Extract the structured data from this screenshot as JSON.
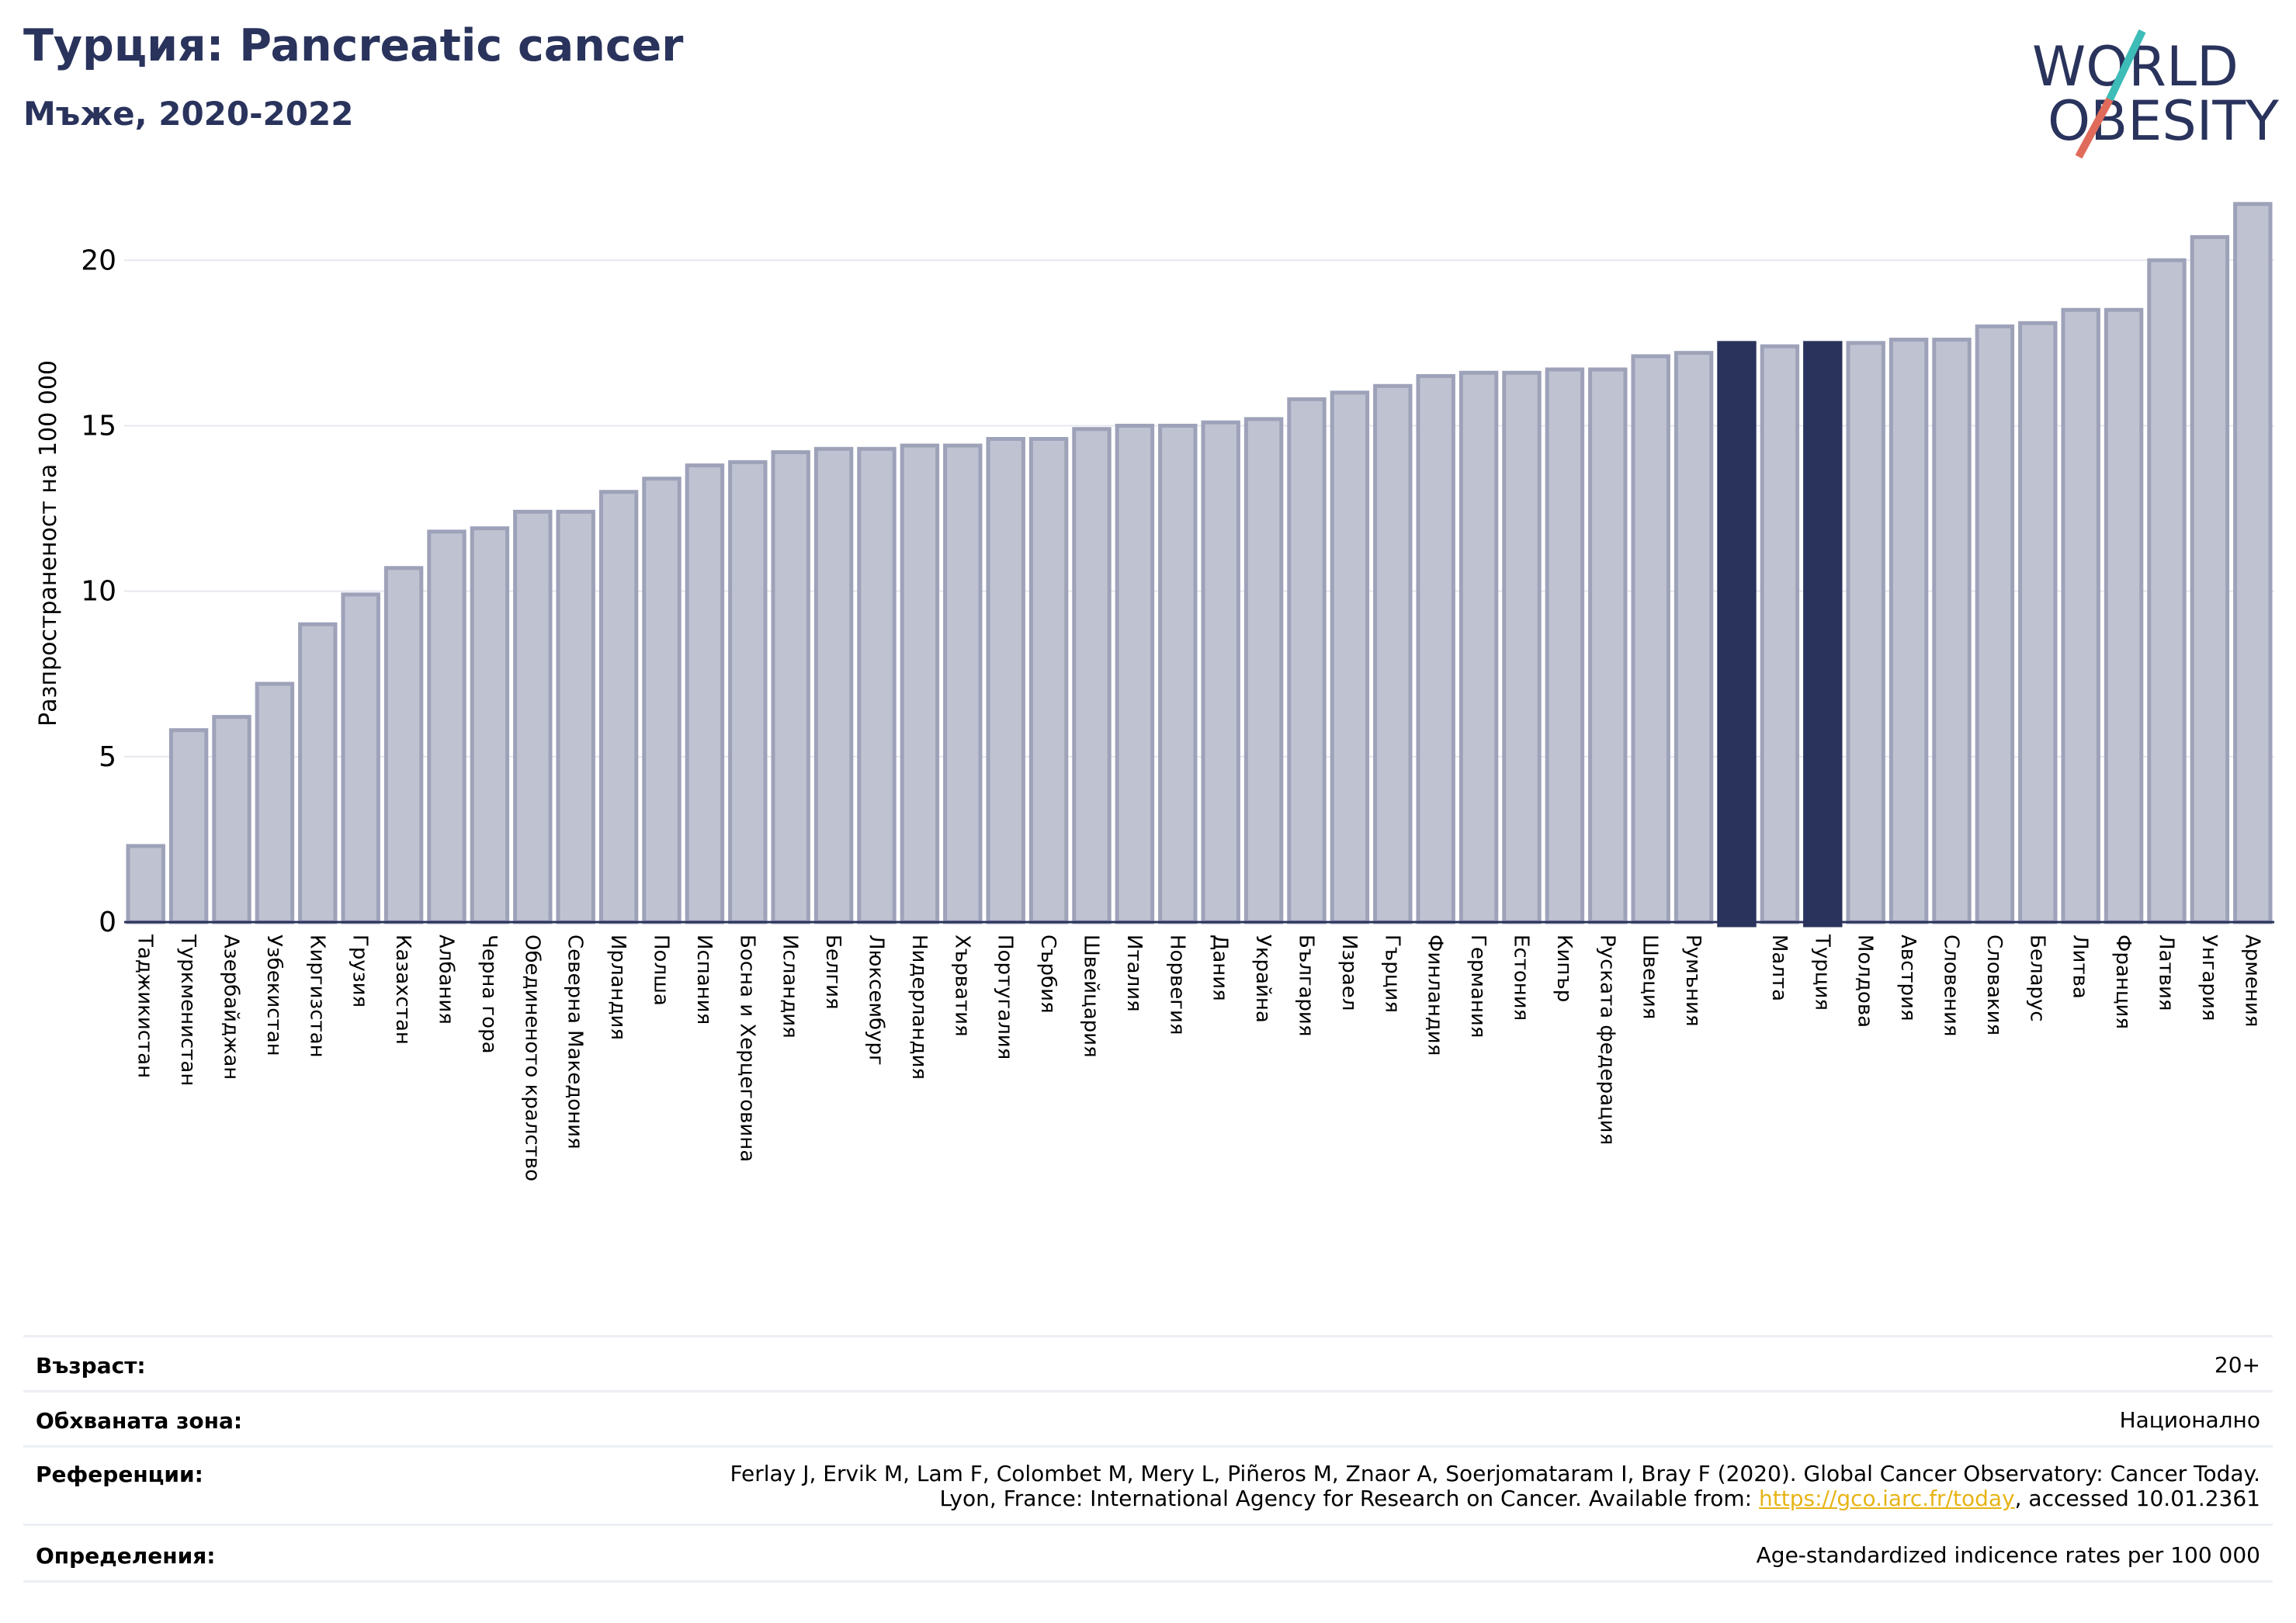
{
  "header": {
    "title": "Турция: Pancreatic cancer",
    "subtitle": "Мъже, 2020-2022",
    "logo_line1": "WORLD",
    "logo_line2": "OBESITY"
  },
  "colors": {
    "bar": "#bfc2d1",
    "bar_edge": "#9ea2b9",
    "highlight": "#29335c",
    "title": "#29335c",
    "logo_teal": "#3dbcb8",
    "logo_red": "#e06b5a"
  },
  "chart_data": {
    "type": "bar",
    "ylabel": "Разпространеност  на 100 000",
    "ylim": [
      0,
      22
    ],
    "yticks": [
      0,
      5,
      10,
      15,
      20
    ],
    "grid": true,
    "categories": [
      "Таджикистан",
      "Туркменистан",
      "Азербайджан",
      "Узбекистан",
      "Киргизстан",
      "Грузия",
      "Казахстан",
      "Албания",
      "Черна гора",
      "Обединеното кралство",
      "Северна Македония",
      "Ирландия",
      "Полша",
      "Испания",
      "Босна и Херцеговина",
      "Исландия",
      "Белгия",
      "Люксембург",
      "Нидерландия",
      "Хърватия",
      "Португалия",
      "Сърбия",
      "Швейцария",
      "Италия",
      "Норвегия",
      "Дания",
      "Украйна",
      "България",
      "Израел",
      "Гърция",
      "Финландия",
      "Германия",
      "Естония",
      "Кипър",
      "Руската федерация",
      "Швеция",
      "Румъния",
      "",
      "Малта",
      "Турция",
      "Молдова",
      "Австрия",
      "Словения",
      "Словакия",
      "Беларус",
      "Литва",
      "Франция",
      "Латвия",
      "Унгария",
      "Армения"
    ],
    "values": [
      2.3,
      5.8,
      6.2,
      7.2,
      9.0,
      9.9,
      10.7,
      11.8,
      11.9,
      12.4,
      12.4,
      13.0,
      13.4,
      13.8,
      13.9,
      14.2,
      14.3,
      14.3,
      14.4,
      14.4,
      14.6,
      14.6,
      14.9,
      15.0,
      15.0,
      15.1,
      15.2,
      15.8,
      16.0,
      16.2,
      16.5,
      16.6,
      16.6,
      16.7,
      16.7,
      17.1,
      17.2,
      17.5,
      17.4,
      17.5,
      17.5,
      17.6,
      17.6,
      18.0,
      18.1,
      18.5,
      18.5,
      20.0,
      20.7,
      21.7
    ],
    "highlighted": [
      37,
      39
    ]
  },
  "footer": {
    "age_label": "Възраст:",
    "age_value": "20+",
    "coverage_label": "Обхваната зона:",
    "coverage_value": "Национално",
    "refs_label": "Референции:",
    "refs_line1": "Ferlay J, Ervik M, Lam F, Colombet M, Mery L, Piñeros M, Znaor A, Soerjomataram I, Bray F (2020). Global Cancer Observatory: Cancer Today.",
    "refs_line2_prefix": "Lyon, France: International Agency for Research on Cancer. Available from: ",
    "refs_link": "https://gco.iarc.fr/today",
    "refs_line2_suffix": ", accessed 10.01.2361",
    "defs_label": "Определения:",
    "defs_value": "Age-standardized indicence rates per 100 000"
  }
}
